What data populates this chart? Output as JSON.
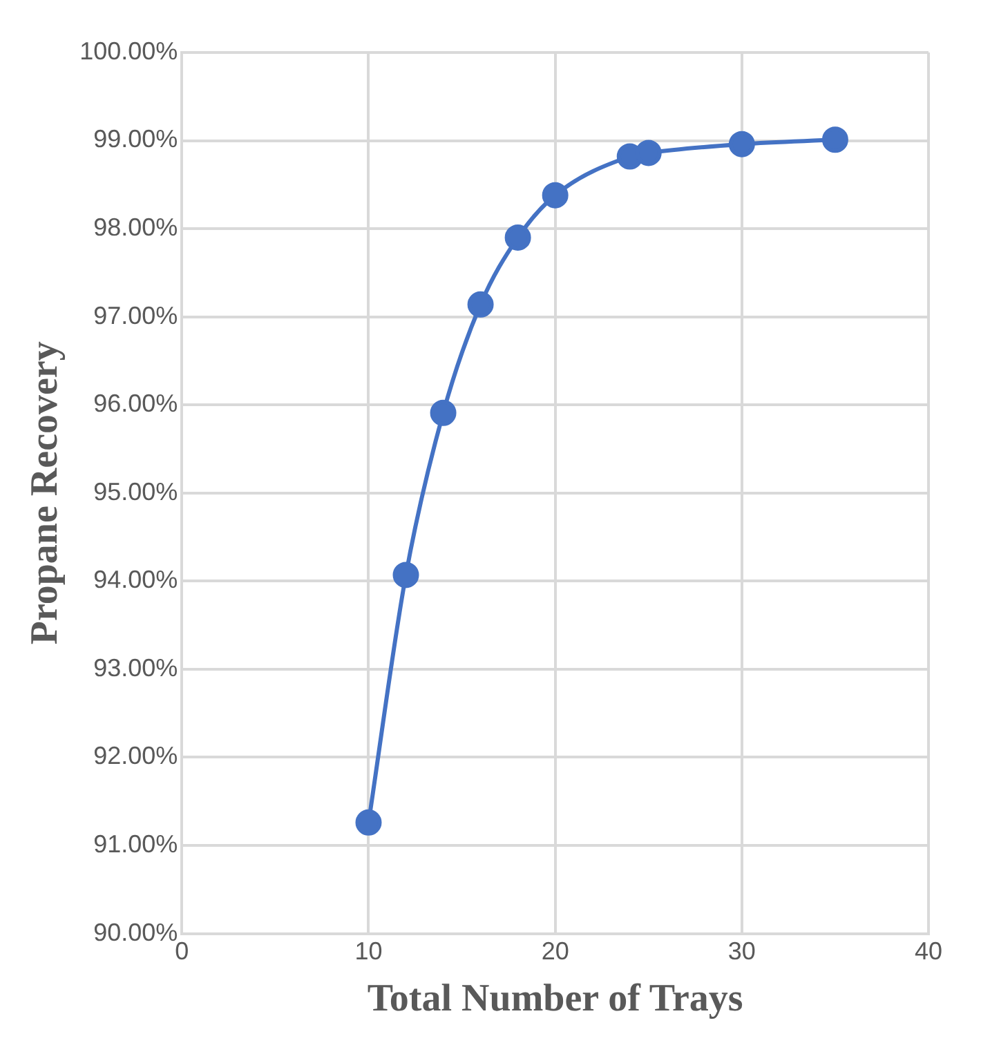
{
  "chart_data": {
    "type": "line",
    "xlabel": "Total Number of Trays",
    "ylabel": "Propane Recovery",
    "x": [
      10,
      12,
      14,
      16,
      18,
      20,
      24,
      25,
      30,
      35
    ],
    "series": [
      {
        "color": "#4472c4",
        "values": [
          91.26,
          94.07,
          95.91,
          97.14,
          97.9,
          98.38,
          98.82,
          98.86,
          98.96,
          99.01
        ]
      }
    ],
    "xlim": [
      0,
      40
    ],
    "xticks": [
      0,
      10,
      20,
      30,
      40
    ],
    "ylim": [
      90,
      100
    ],
    "yticks": [
      {
        "value": 90,
        "label": "90.00%"
      },
      {
        "value": 91,
        "label": "91.00%"
      },
      {
        "value": 92,
        "label": "92.00%"
      },
      {
        "value": 93,
        "label": "93.00%"
      },
      {
        "value": 94,
        "label": "94.00%"
      },
      {
        "value": 95,
        "label": "95.00%"
      },
      {
        "value": 96,
        "label": "96.00%"
      },
      {
        "value": 97,
        "label": "97.00%"
      },
      {
        "value": 98,
        "label": "98.00%"
      },
      {
        "value": 99,
        "label": "99.00%"
      },
      {
        "value": 100,
        "label": "100.00%"
      }
    ],
    "grid": true,
    "legend": false,
    "marker": "circle",
    "line_style": "solid"
  }
}
